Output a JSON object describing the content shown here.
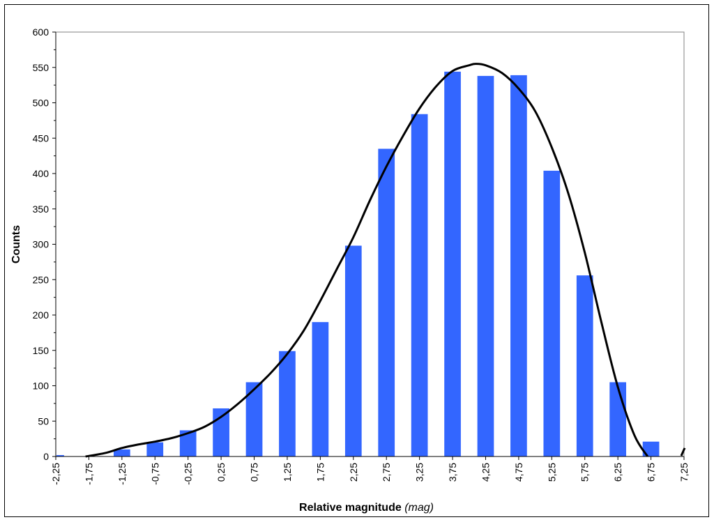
{
  "chart_data": {
    "type": "bar",
    "title": "",
    "xlabel": "Relative magnitude",
    "xlabel_unit": "(mag)",
    "ylabel": "Counts",
    "ylim": [
      0,
      600
    ],
    "y_ticks": [
      "0",
      "50",
      "100",
      "150",
      "200",
      "250",
      "300",
      "350",
      "400",
      "450",
      "500",
      "550",
      "600"
    ],
    "categories": [
      "-2,25",
      "-1,75",
      "-1,25",
      "-0,75",
      "-0,25",
      "0,25",
      "0,75",
      "1,25",
      "1,75",
      "2,25",
      "2,75",
      "3,25",
      "3,75",
      "4,25",
      "4,75",
      "5,25",
      "5,75",
      "6,25",
      "6,75",
      "7,25"
    ],
    "x_numeric": [
      -2.25,
      -1.75,
      -1.25,
      -0.75,
      -0.25,
      0.25,
      0.75,
      1.25,
      1.75,
      2.25,
      2.75,
      3.25,
      3.75,
      4.25,
      4.75,
      5.25,
      5.75,
      6.25,
      6.75,
      7.25
    ],
    "series": [
      {
        "type": "bar",
        "values": [
          2,
          0,
          10,
          20,
          37,
          68,
          105,
          149,
          190,
          298,
          435,
          484,
          544,
          538,
          539,
          404,
          256,
          105,
          21,
          0
        ]
      },
      {
        "type": "line",
        "x": [
          -1.8,
          -1.5,
          -1.25,
          -1.0,
          -0.75,
          -0.5,
          -0.25,
          0.0,
          0.25,
          0.5,
          0.75,
          1.0,
          1.25,
          1.5,
          1.75,
          2.0,
          2.25,
          2.5,
          2.75,
          3.0,
          3.25,
          3.5,
          3.75,
          4.0,
          4.1,
          4.25,
          4.5,
          4.75,
          5.0,
          5.25,
          5.5,
          5.75,
          6.0,
          6.25,
          6.5,
          6.7
        ],
        "y": [
          0,
          5,
          12,
          17,
          21,
          26,
          33,
          42,
          56,
          74,
          95,
          118,
          145,
          178,
          220,
          265,
          310,
          362,
          410,
          453,
          492,
          523,
          545,
          553,
          555,
          553,
          542,
          520,
          488,
          437,
          372,
          288,
          190,
          98,
          30,
          0
        ]
      }
    ],
    "colors": {
      "bar": "#3366ff",
      "curve": "#000000"
    },
    "grid": false,
    "legend": "none"
  }
}
